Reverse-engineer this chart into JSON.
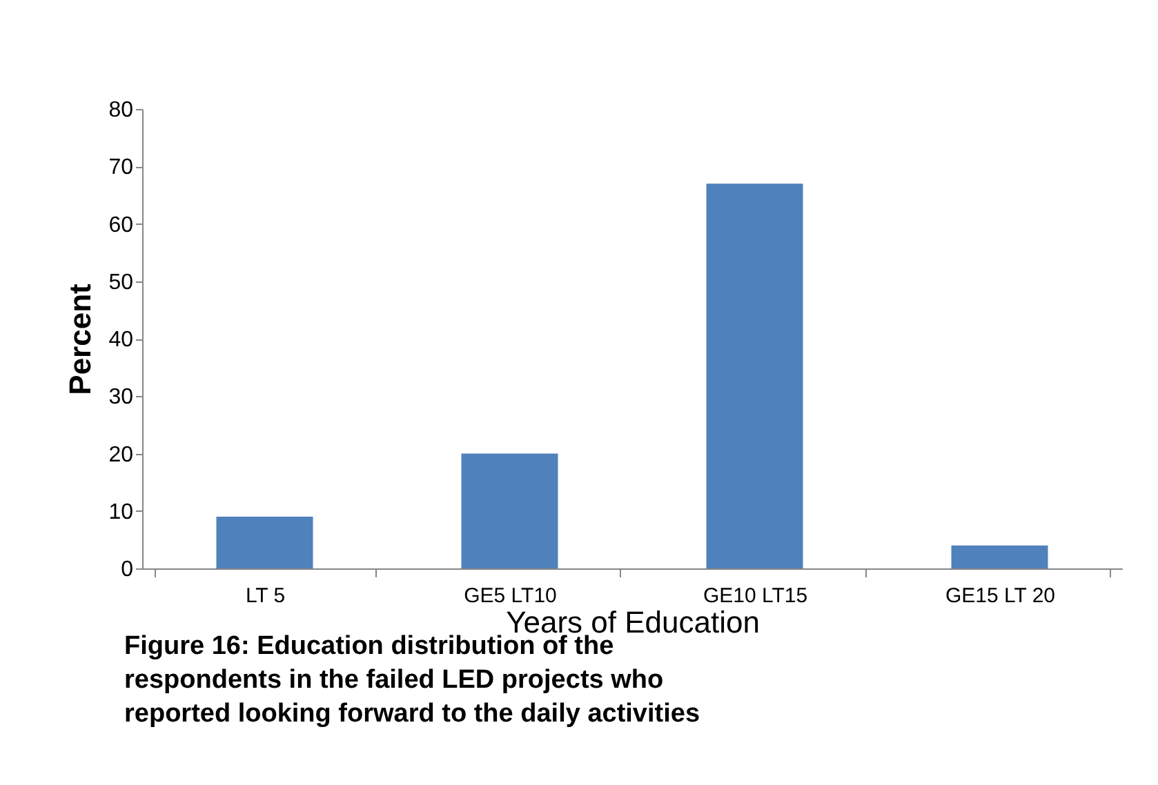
{
  "chart_data": {
    "type": "bar",
    "xlabel": "Years of Education",
    "ylabel": "Percent",
    "categories": [
      "LT 5",
      "GE5 LT10",
      "GE10 LT15",
      "GE15 LT 20"
    ],
    "values": [
      9,
      20,
      67,
      4
    ],
    "color": "#4f81bd",
    "ylim": [
      0,
      80
    ],
    "yticks": [
      0,
      10,
      20,
      30,
      40,
      50,
      60,
      70,
      80
    ],
    "grid": false,
    "annotations": [
      "Figure 16:  Education distribution of the",
      "respondents in the failed LED projects who",
      "reported looking forward to the daily activities"
    ]
  }
}
